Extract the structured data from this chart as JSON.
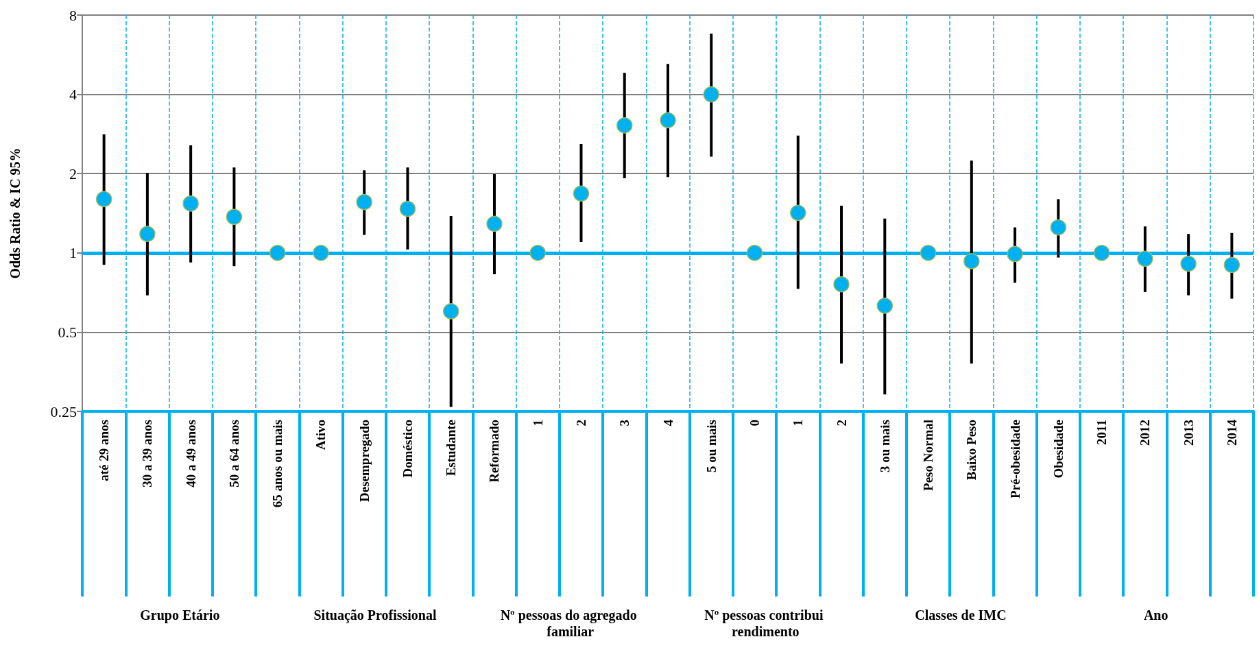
{
  "chart_data": {
    "type": "scatter",
    "ylabel": "Odds Ratio & IC 95%",
    "categories": [
      "até 29 anos",
      "30 a 39 anos",
      "40 a 49 anos",
      "50 a 64 anos",
      "65 anos ou mais",
      "Ativo",
      "Desempregado",
      "Doméstico",
      "Estudante",
      "Reformado",
      "1",
      "2",
      "3",
      "4",
      "5 ou mais",
      "0",
      "1",
      "2",
      "3 ou mais",
      "Peso Normal",
      "Baixo Peso",
      "Pré-obesidade",
      "Obesidade",
      "2011",
      "2012",
      "2013",
      "2014"
    ],
    "values": [
      1.6,
      1.18,
      1.54,
      1.37,
      1,
      1,
      1.56,
      1.47,
      0.6,
      1.29,
      1,
      1.68,
      3.05,
      3.19,
      4.0,
      1,
      1.42,
      0.76,
      0.63,
      1,
      0.93,
      0.99,
      1.25,
      1,
      0.95,
      0.91,
      0.9
    ],
    "errors": [
      [
        0.9,
        2.82
      ],
      [
        0.69,
        2.01
      ],
      [
        0.92,
        2.56
      ],
      [
        0.89,
        2.11
      ],
      null,
      null,
      [
        1.17,
        2.06
      ],
      [
        1.03,
        2.11
      ],
      [
        0.26,
        1.38
      ],
      [
        0.83,
        1.99
      ],
      null,
      [
        1.1,
        2.59
      ],
      [
        1.92,
        4.83
      ],
      [
        1.94,
        5.22
      ],
      [
        2.32,
        6.8
      ],
      null,
      [
        0.73,
        2.79
      ],
      [
        0.38,
        1.51
      ],
      [
        0.29,
        1.35
      ],
      null,
      [
        0.38,
        2.24
      ],
      [
        0.77,
        1.25
      ],
      [
        0.96,
        1.6
      ],
      null,
      [
        0.71,
        1.26
      ],
      [
        0.69,
        1.18
      ],
      [
        0.67,
        1.19
      ]
    ],
    "color": "#00b0f0",
    "marker": "circle",
    "log": "y",
    "ylim": [
      0.25,
      8
    ],
    "yticks": [
      0.25,
      0.5,
      1,
      2,
      4,
      8
    ],
    "grid": true,
    "ref_lines": [
      {
        "axis": "y",
        "value": 1,
        "color": "#00b0f0"
      }
    ],
    "annotations": [
      "Grupo Etário",
      "Situação Profissional",
      "Nº pessoas do agregado familiar",
      "Nº pessoas contribui rendimento",
      "Classes de IMC",
      "Ano"
    ]
  }
}
